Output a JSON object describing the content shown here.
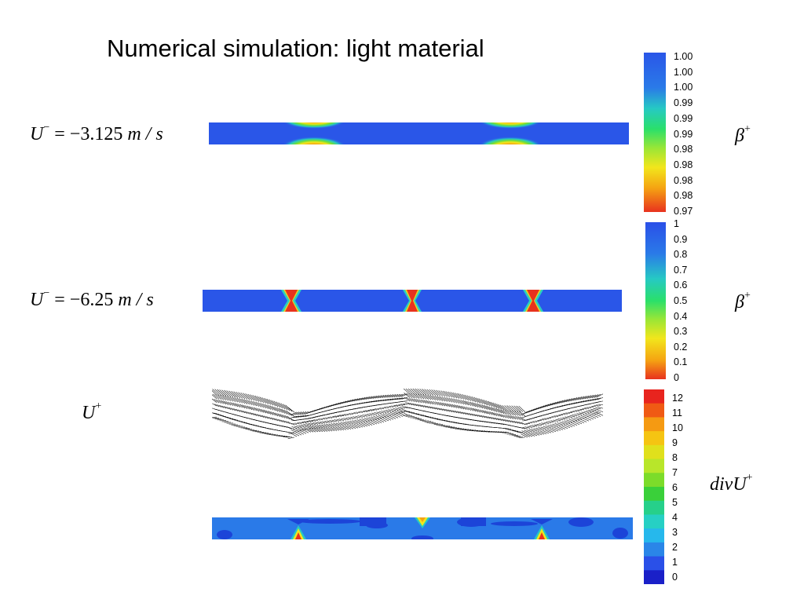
{
  "slide": {
    "title": "Numerical simulation: light material"
  },
  "labels": {
    "case1": {
      "base": "U",
      "sup": "−",
      "eq": " = −3.125 ",
      "unit": "m / s"
    },
    "case2": {
      "base": "U",
      "sup": "−",
      "eq": " = −6.25 ",
      "unit": "m / s"
    },
    "velocity": {
      "base": "U",
      "sup": "+"
    },
    "beta1": {
      "base": "β",
      "sup": "+"
    },
    "beta2": {
      "base": "β",
      "sup": "+"
    },
    "divergence": {
      "base": "divU",
      "sup": "+"
    }
  },
  "colorbars": {
    "beta_fine": [
      "1.00",
      "1.00",
      "1.00",
      "0.99",
      "0.99",
      "0.99",
      "0.98",
      "0.98",
      "0.98",
      "0.98",
      "0.97"
    ],
    "beta_coarse": [
      "1",
      "0.9",
      "0.8",
      "0.7",
      "0.6",
      "0.5",
      "0.4",
      "0.3",
      "0.2",
      "0.1",
      "0"
    ],
    "divergence": [
      "12",
      "11",
      "10",
      "9",
      "8",
      "7",
      "6",
      "5",
      "4",
      "3",
      "2",
      "1",
      "0"
    ]
  },
  "colors": {
    "background_field": "#2a56e8",
    "hot": "#e8321e"
  }
}
